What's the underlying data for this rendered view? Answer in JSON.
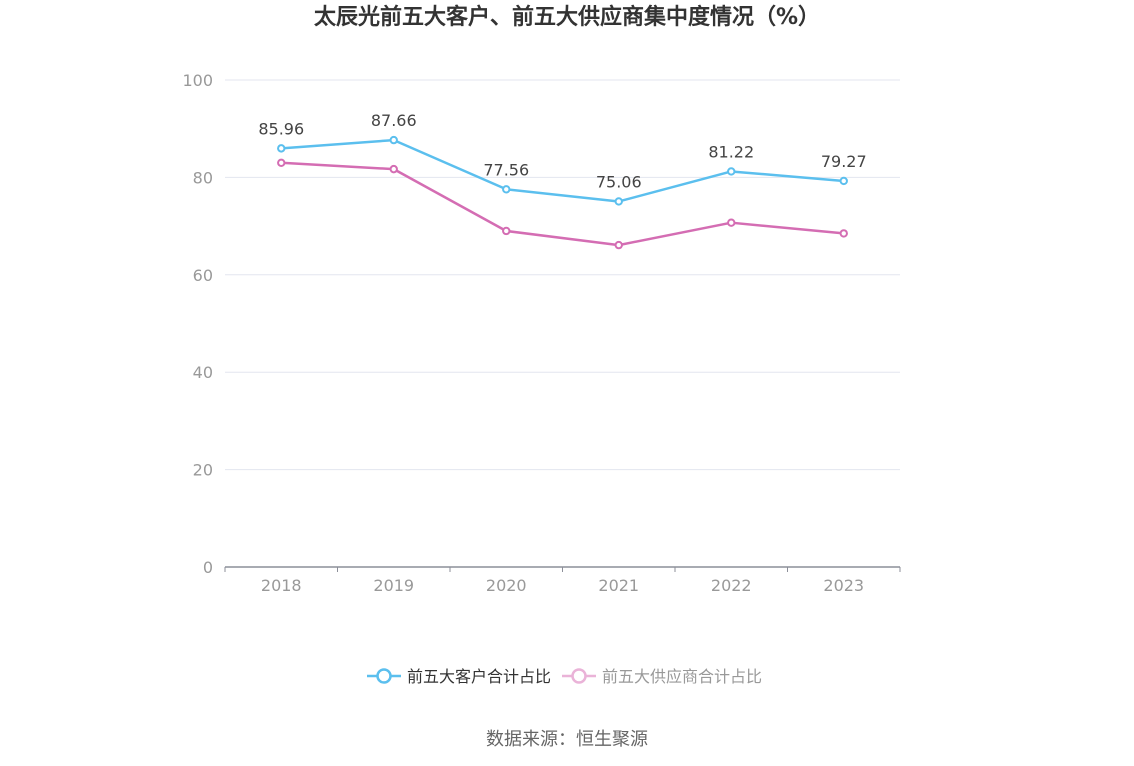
{
  "chart_data": {
    "type": "line",
    "title": "太辰光前五大客户、前五大供应商集中度情况（%）",
    "x": [
      "2018",
      "2019",
      "2020",
      "2021",
      "2022",
      "2023"
    ],
    "ylim": [
      0,
      100
    ],
    "yticks": [
      "0",
      "20",
      "40",
      "60",
      "80",
      "100"
    ],
    "grid": true,
    "legend_position": "bottom",
    "series": [
      {
        "name": "前五大客户合计占比",
        "color": "#5bbfee",
        "values": [
          85.96,
          87.66,
          77.56,
          75.06,
          81.22,
          79.27
        ],
        "labels": [
          "85.96",
          "87.66",
          "77.56",
          "75.06",
          "81.22",
          "79.27"
        ]
      },
      {
        "name": "前五大供应商合计占比",
        "color": "#d46db3",
        "legend_color": "#eab3d8",
        "values": [
          83.0,
          81.7,
          69.0,
          66.1,
          70.7,
          68.5
        ],
        "labels": []
      }
    ]
  },
  "source": "数据来源：恒生聚源"
}
